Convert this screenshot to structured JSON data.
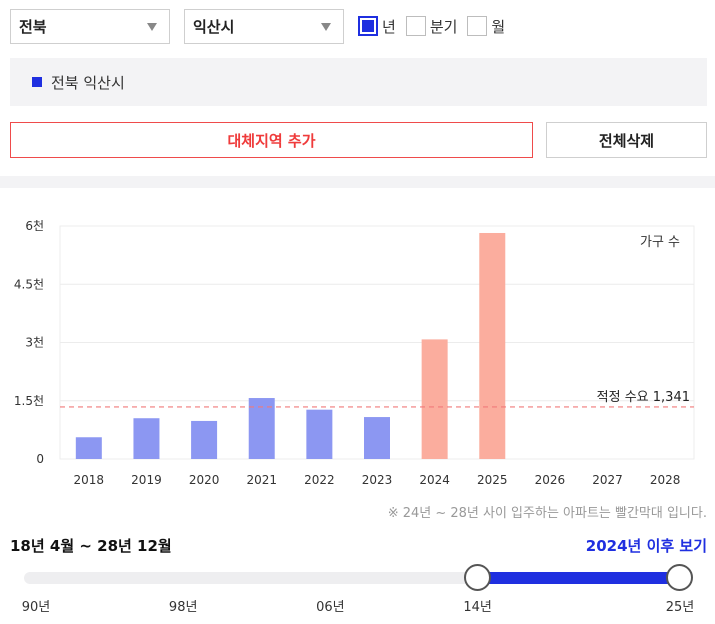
{
  "filters": {
    "province": "전북",
    "city": "익산시",
    "periods": [
      {
        "label": "년",
        "checked": true
      },
      {
        "label": "분기",
        "checked": false
      },
      {
        "label": "월",
        "checked": false
      }
    ]
  },
  "region_legend": {
    "label": "전북 익산시",
    "color": "#1f2fe0"
  },
  "buttons": {
    "add_label": "대체지역 추가",
    "delete_label": "전체삭제"
  },
  "chart_data": {
    "type": "bar",
    "categories": [
      "2018",
      "2019",
      "2020",
      "2021",
      "2022",
      "2023",
      "2024",
      "2025",
      "2026",
      "2027",
      "2028"
    ],
    "values": [
      560,
      1050,
      980,
      1570,
      1270,
      1080,
      3080,
      5820,
      null,
      null,
      null
    ],
    "highlight_from": "2024",
    "colors": {
      "past": "#8c97f2",
      "future": "#fbad9e",
      "reference": "#f17a7a"
    },
    "ylim": [
      0,
      6000
    ],
    "yticks": [
      {
        "value": 0,
        "label": "0"
      },
      {
        "value": 1500,
        "label": "1.5천"
      },
      {
        "value": 3000,
        "label": "3천"
      },
      {
        "value": 4500,
        "label": "4.5천"
      },
      {
        "value": 6000,
        "label": "6천"
      }
    ],
    "unit_label": "가구 수",
    "reference_line": {
      "value": 1341,
      "label": "적정 수요 1,341"
    },
    "grid": true
  },
  "note": "※ 24년 ~ 28년 사이 입주하는 아파트는 빨간막대 입니다.",
  "range": {
    "label": "18년 4월 ~ 28년 12월",
    "link_label": "2024년 이후 보기",
    "min_year": 1990,
    "max_year": 2025,
    "selected": [
      2014,
      2025
    ],
    "ticks": [
      {
        "year": 1990,
        "label": "90년"
      },
      {
        "year": 1998,
        "label": "98년"
      },
      {
        "year": 2006,
        "label": "06년"
      },
      {
        "year": 2014,
        "label": "14년"
      },
      {
        "year": 2025,
        "label": "25년"
      }
    ]
  }
}
